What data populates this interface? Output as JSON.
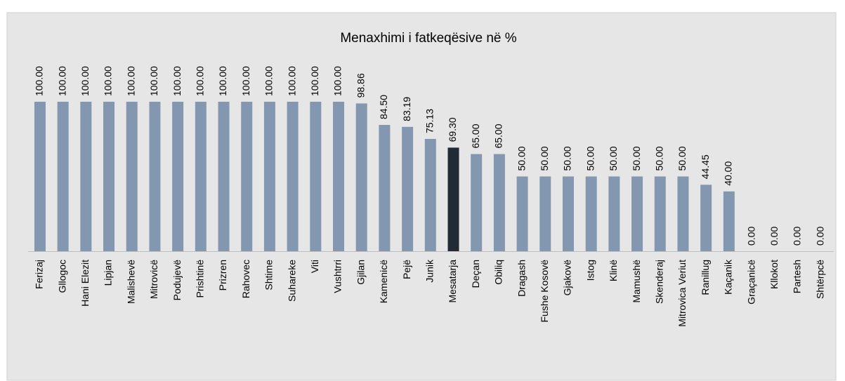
{
  "chart_data": {
    "type": "bar",
    "title": "Menaxhimi i fatkeqësive në %",
    "categories": [
      "Ferizaj",
      "Gllogoc",
      "Hani Elezit",
      "Lipjan",
      "Malishevë",
      "Mitrovicë",
      "Podujevë",
      "Prishtinë",
      "Prizren",
      "Rahovec",
      "Shtime",
      "Suhareke",
      "Viti",
      "Vushtrri",
      "Gjilan",
      "Kamenicë",
      "Pejë",
      "Junik",
      "Mesatarja",
      "Deçan",
      "Obiliq",
      "Dragash",
      "Fushe Kosovë",
      "Gjakovë",
      "Istog",
      "Klinë",
      "Mamushë",
      "Skenderaj",
      "Mitrovica Veriut",
      "Ranillug",
      "Kaçanik",
      "Graçanicë",
      "Kllokot",
      "Partesh",
      "Shtërpcë"
    ],
    "values": [
      100,
      100,
      100,
      100,
      100,
      100,
      100,
      100,
      100,
      100,
      100,
      100,
      100,
      100,
      98.86,
      84.5,
      83.19,
      75.13,
      69.3,
      65,
      65,
      50,
      50,
      50,
      50,
      50,
      50,
      50,
      50,
      44.45,
      40,
      0,
      0,
      0,
      0
    ],
    "value_labels": [
      "100.00",
      "100.00",
      "100.00",
      "100.00",
      "100.00",
      "100.00",
      "100.00",
      "100.00",
      "100.00",
      "100.00",
      "100.00",
      "100.00",
      "100.00",
      "100.00",
      "98.86",
      "84.50",
      "83.19",
      "75.13",
      "69.30",
      "65.00",
      "65.00",
      "50.00",
      "50.00",
      "50.00",
      "50.00",
      "50.00",
      "50.00",
      "50.00",
      "50.00",
      "44.45",
      "40.00",
      "0.00",
      "0.00",
      "0.00",
      "0.00"
    ],
    "colors": [
      "#8497b0",
      "#8497b0",
      "#8497b0",
      "#8497b0",
      "#8497b0",
      "#8497b0",
      "#8497b0",
      "#8497b0",
      "#8497b0",
      "#8497b0",
      "#8497b0",
      "#8497b0",
      "#8497b0",
      "#8497b0",
      "#8497b0",
      "#8497b0",
      "#8497b0",
      "#8497b0",
      "#222a35",
      "#8497b0",
      "#8497b0",
      "#8497b0",
      "#8497b0",
      "#8497b0",
      "#8497b0",
      "#8497b0",
      "#8497b0",
      "#8497b0",
      "#8497b0",
      "#8497b0",
      "#8497b0",
      "#8497b0",
      "#8497b0",
      "#8497b0",
      "#8497b0"
    ],
    "ylim": [
      0,
      100
    ]
  }
}
